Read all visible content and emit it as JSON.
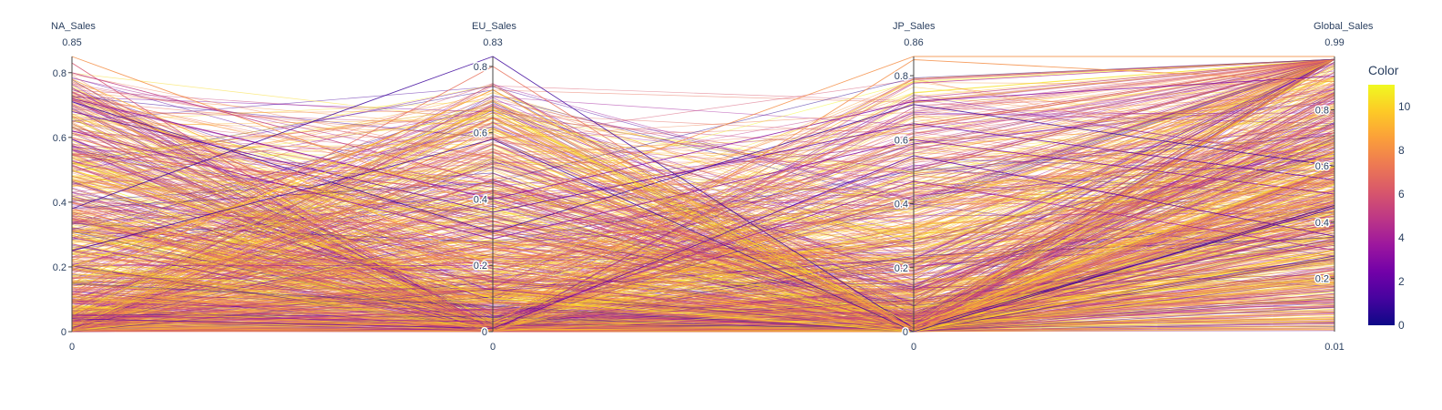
{
  "chart_data": {
    "type": "parallel_coordinates",
    "dimensions": [
      {
        "label": "NA_Sales",
        "range_max_label": "0.85",
        "range_min_label": "0",
        "range": [
          0,
          0.85
        ],
        "ticks": [
          {
            "value": 0,
            "label": "0"
          },
          {
            "value": 0.2,
            "label": "0.2"
          },
          {
            "value": 0.4,
            "label": "0.4"
          },
          {
            "value": 0.6,
            "label": "0.6"
          },
          {
            "value": 0.8,
            "label": "0.8"
          }
        ]
      },
      {
        "label": "EU_Sales",
        "range_max_label": "0.83",
        "range_min_label": "0",
        "range": [
          0,
          0.83
        ],
        "ticks": [
          {
            "value": 0,
            "label": "0"
          },
          {
            "value": 0.2,
            "label": "0.2"
          },
          {
            "value": 0.4,
            "label": "0.4"
          },
          {
            "value": 0.6,
            "label": "0.6"
          },
          {
            "value": 0.8,
            "label": "0.8"
          }
        ]
      },
      {
        "label": "JP_Sales",
        "range_max_label": "0.86",
        "range_min_label": "0",
        "range": [
          0,
          0.86
        ],
        "ticks": [
          {
            "value": 0,
            "label": "0"
          },
          {
            "value": 0.2,
            "label": "0.2"
          },
          {
            "value": 0.4,
            "label": "0.4"
          },
          {
            "value": 0.6,
            "label": "0.6"
          },
          {
            "value": 0.8,
            "label": "0.8"
          }
        ]
      },
      {
        "label": "Global_Sales",
        "range_max_label": "0.99",
        "range_min_label": "0.01",
        "range": [
          0.01,
          0.99
        ],
        "ticks": [
          {
            "value": 0.2,
            "label": "0.2"
          },
          {
            "value": 0.4,
            "label": "0.4"
          },
          {
            "value": 0.6,
            "label": "0.6"
          },
          {
            "value": 0.8,
            "label": "0.8"
          }
        ]
      }
    ],
    "colorbar": {
      "title": "Color",
      "range": [
        0,
        11
      ],
      "ticks": [
        {
          "value": 0,
          "label": "0"
        },
        {
          "value": 2,
          "label": "2"
        },
        {
          "value": 4,
          "label": "4"
        },
        {
          "value": 6,
          "label": "6"
        },
        {
          "value": 8,
          "label": "8"
        },
        {
          "value": 10,
          "label": "10"
        }
      ],
      "colorscale": [
        "#0d0887",
        "#46039f",
        "#7201a8",
        "#9c179e",
        "#bd3786",
        "#d8576b",
        "#ed7953",
        "#fb9f3a",
        "#fdca26",
        "#f0f921"
      ]
    },
    "sample_lines": [
      {
        "values": [
          0.85,
          0.37,
          0.86,
          0.99
        ],
        "color": 8
      },
      {
        "values": [
          0.83,
          0.0,
          0.01,
          0.85
        ],
        "color": 6
      },
      {
        "values": [
          0.8,
          0.45,
          0.02,
          0.78
        ],
        "color": 5
      },
      {
        "values": [
          0.78,
          0.2,
          0.0,
          0.6
        ],
        "color": 9
      },
      {
        "values": [
          0.72,
          0.4,
          0.72,
          0.92
        ],
        "color": 3
      },
      {
        "values": [
          0.71,
          0.3,
          0.71,
          0.6
        ],
        "color": 1
      },
      {
        "values": [
          0.68,
          0.36,
          0.65,
          0.55
        ],
        "color": 2
      },
      {
        "values": [
          0.62,
          0.28,
          0.6,
          0.5
        ],
        "color": 3
      },
      {
        "values": [
          0.6,
          0.25,
          0.02,
          0.4
        ],
        "color": 7
      },
      {
        "values": [
          0.55,
          0.42,
          0.0,
          0.58
        ],
        "color": 6
      },
      {
        "values": [
          0.5,
          0.1,
          0.0,
          0.3
        ],
        "color": 10
      },
      {
        "values": [
          0.38,
          0.83,
          0.01,
          0.45
        ],
        "color": 1
      },
      {
        "values": [
          0.12,
          0.8,
          0.0,
          0.72
        ],
        "color": 7
      },
      {
        "values": [
          0.15,
          0.73,
          0.0,
          0.65
        ],
        "color": 9
      },
      {
        "values": [
          0.2,
          0.67,
          0.02,
          0.6
        ],
        "color": 10
      },
      {
        "values": [
          0.22,
          0.63,
          0.01,
          0.5
        ],
        "color": 8
      },
      {
        "values": [
          0.25,
          0.58,
          0.0,
          0.46
        ],
        "color": 1
      },
      {
        "values": [
          0.03,
          0.02,
          0.85,
          0.9
        ],
        "color": 8
      },
      {
        "values": [
          0.04,
          0.01,
          0.55,
          0.35
        ],
        "color": 2
      },
      {
        "values": [
          0.05,
          0.03,
          0.47,
          0.3
        ],
        "color": 4
      }
    ]
  }
}
